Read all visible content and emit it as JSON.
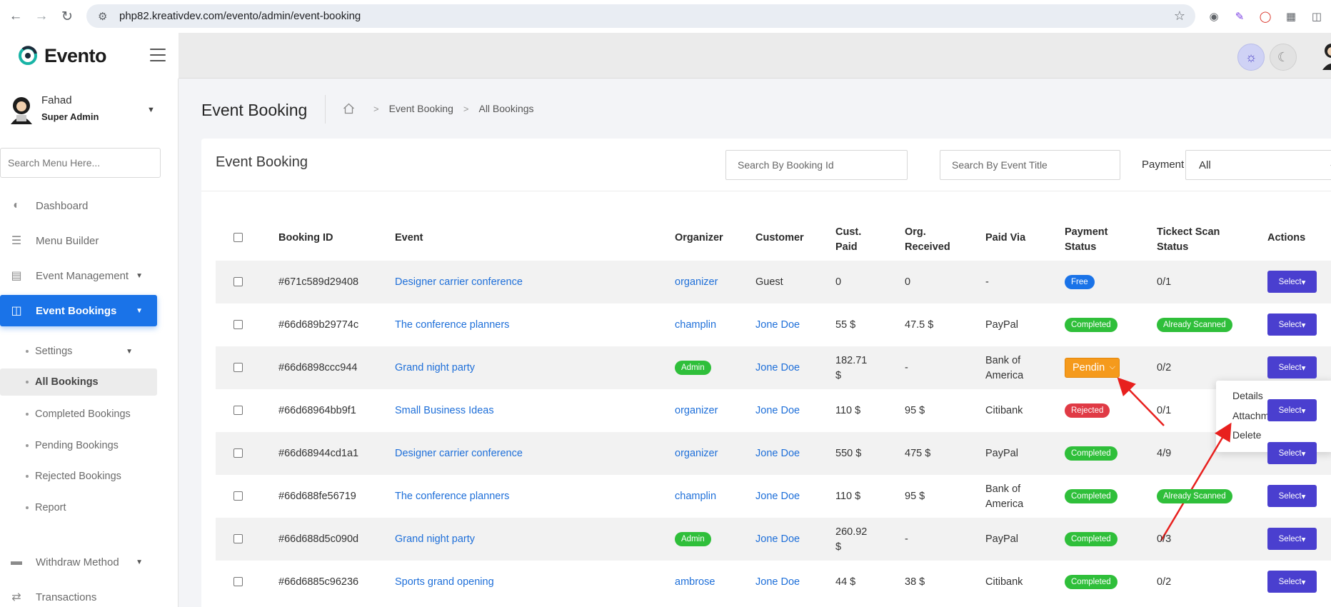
{
  "browser": {
    "url": "php82.kreativdev.com/evento/admin/event-booking"
  },
  "brand": {
    "name": "Evento"
  },
  "sidebar": {
    "user": {
      "name": "Fahad",
      "role": "Super Admin"
    },
    "search_placeholder": "Search Menu Here...",
    "items": [
      {
        "label": "Dashboard"
      },
      {
        "label": "Menu Builder"
      },
      {
        "label": "Event Management"
      },
      {
        "label": "Event Bookings"
      },
      {
        "label": "Withdraw Method"
      },
      {
        "label": "Transactions"
      }
    ],
    "subitems": [
      {
        "label": "Settings"
      },
      {
        "label": "All Bookings"
      },
      {
        "label": "Completed Bookings"
      },
      {
        "label": "Pending Bookings"
      },
      {
        "label": "Rejected Bookings"
      },
      {
        "label": "Report"
      }
    ]
  },
  "page": {
    "title": "Event Booking",
    "breadcrumb": [
      "Event Booking",
      "All Bookings"
    ]
  },
  "card": {
    "title": "Event Booking",
    "search_booking_placeholder": "Search By Booking Id",
    "search_event_placeholder": "Search By Event Title",
    "payment_label": "Payment",
    "payment_value": "All"
  },
  "table": {
    "headers": {
      "booking_id": "Booking ID",
      "event": "Event",
      "organizer": "Organizer",
      "customer": "Customer",
      "cust_paid_1": "Cust.",
      "cust_paid_2": "Paid",
      "org_received_1": "Org.",
      "org_received_2": "Received",
      "paid_via": "Paid Via",
      "payment_status_1": "Payment",
      "payment_status_2": "Status",
      "scan_status_1": "Tickect Scan",
      "scan_status_2": "Status",
      "actions": "Actions"
    },
    "rows": [
      {
        "id": "#671c589d29408",
        "event": "Designer carrier conference",
        "organizer": "organizer",
        "customer": "Guest",
        "paid1": "0",
        "paid2": "",
        "received": "0",
        "via1": "-",
        "via2": "",
        "status": "Free",
        "scan": "0/1",
        "action": "Select"
      },
      {
        "id": "#66d689b29774c",
        "event": "The conference planners",
        "organizer": "champlin",
        "customer": "Jone Doe",
        "paid1": "55 $",
        "paid2": "",
        "received": "47.5 $",
        "via1": "PayPal",
        "via2": "",
        "status": "Completed",
        "scan": "Already Scanned",
        "action": "Select"
      },
      {
        "id": "#66d6898ccc944",
        "event": "Grand night party",
        "organizer": "Admin",
        "customer": "Jone Doe",
        "paid1": "182.71",
        "paid2": "$",
        "received": "-",
        "via1": "Bank of",
        "via2": "America",
        "status": "Pendin",
        "scan": "0/2",
        "action": "Select"
      },
      {
        "id": "#66d68964bb9f1",
        "event": "Small Business Ideas",
        "organizer": "organizer",
        "customer": "Jone Doe",
        "paid1": "110 $",
        "paid2": "",
        "received": "95 $",
        "via1": "Citibank",
        "via2": "",
        "status": "Rejected",
        "scan": "0/1",
        "action": "Select"
      },
      {
        "id": "#66d68944cd1a1",
        "event": "Designer carrier conference",
        "organizer": "organizer",
        "customer": "Jone Doe",
        "paid1": "550 $",
        "paid2": "",
        "received": "475 $",
        "via1": "PayPal",
        "via2": "",
        "status": "Completed",
        "scan": "4/9",
        "action": "Select"
      },
      {
        "id": "#66d688fe56719",
        "event": "The conference planners",
        "organizer": "champlin",
        "customer": "Jone Doe",
        "paid1": "110 $",
        "paid2": "",
        "received": "95 $",
        "via1": "Bank of",
        "via2": "America",
        "status": "Completed",
        "scan": "Already Scanned",
        "action": "Select"
      },
      {
        "id": "#66d688d5c090d",
        "event": "Grand night party",
        "organizer": "Admin",
        "customer": "Jone Doe",
        "paid1": "260.92",
        "paid2": "$",
        "received": "-",
        "via1": "PayPal",
        "via2": "",
        "status": "Completed",
        "scan": "0/3",
        "action": "Select"
      },
      {
        "id": "#66d6885c96236",
        "event": "Sports grand opening",
        "organizer": "ambrose",
        "customer": "Jone Doe",
        "paid1": "44 $",
        "paid2": "",
        "received": "38 $",
        "via1": "Citibank",
        "via2": "",
        "status": "Completed",
        "scan": "0/2",
        "action": "Select"
      }
    ]
  },
  "dropdown": {
    "items": [
      "Details",
      "Attachment",
      "Delete"
    ]
  },
  "colors": {
    "primary": "#1a73e8",
    "action": "#4a3fcf",
    "success": "#2fbf3a",
    "danger": "#e03a45",
    "warning": "#f59a1c",
    "annotation": "#e8201e"
  }
}
